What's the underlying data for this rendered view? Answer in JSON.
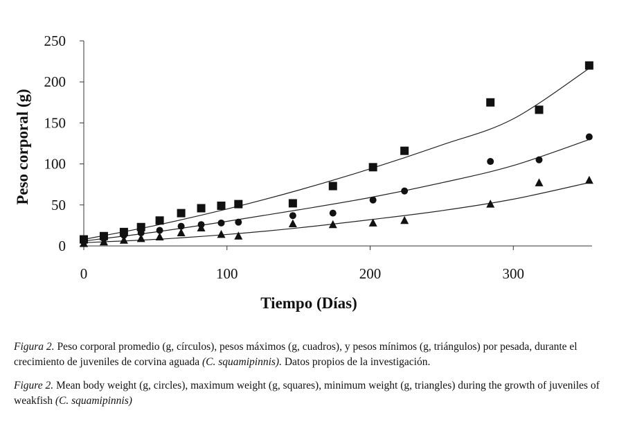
{
  "chart_data": {
    "type": "scatter",
    "xlabel": "Tiempo (Días)",
    "ylabel": "Peso corporal (g)",
    "xlim": [
      0,
      355
    ],
    "ylim": [
      0,
      250
    ],
    "x_ticks": [
      0,
      100,
      200,
      300
    ],
    "y_ticks": [
      0,
      50,
      100,
      150,
      200,
      250
    ],
    "series": [
      {
        "name": "maximum weight (squares)",
        "marker": "square",
        "x": [
          0,
          14,
          28,
          40,
          53,
          68,
          82,
          96,
          108,
          146,
          174,
          202,
          224,
          284,
          318,
          353
        ],
        "y": [
          8,
          12,
          17,
          23,
          31,
          40,
          46,
          49,
          51,
          52,
          73,
          96,
          116,
          175,
          166,
          220
        ],
        "trend_x": [
          0,
          50,
          100,
          150,
          200,
          250,
          300,
          355
        ],
        "trend_y": [
          8,
          25,
          45,
          68,
          94,
          123,
          155,
          219
        ]
      },
      {
        "name": "mean weight (circles)",
        "marker": "circle",
        "x": [
          0,
          14,
          28,
          40,
          53,
          68,
          82,
          96,
          108,
          146,
          174,
          202,
          224,
          284,
          318,
          353
        ],
        "y": [
          5,
          9,
          13,
          16,
          19,
          24,
          26,
          28,
          29,
          37,
          40,
          56,
          67,
          103,
          105,
          133
        ],
        "trend_x": [
          0,
          50,
          100,
          150,
          200,
          250,
          300,
          355
        ],
        "trend_y": [
          6,
          17,
          30,
          44,
          59,
          77,
          98,
          131
        ]
      },
      {
        "name": "minimum weight (triangles)",
        "marker": "triangle",
        "x": [
          0,
          14,
          28,
          40,
          53,
          68,
          82,
          96,
          108,
          146,
          174,
          202,
          224,
          284,
          318,
          353
        ],
        "y": [
          3,
          5,
          7,
          9,
          11,
          16,
          22,
          14,
          12,
          27,
          26,
          28,
          31,
          51,
          77,
          80
        ],
        "trend_x": [
          0,
          50,
          100,
          150,
          200,
          250,
          300,
          355
        ],
        "trend_y": [
          4,
          8,
          14,
          22,
          32,
          43,
          57,
          78
        ]
      }
    ]
  },
  "caption_es": {
    "label": "Figura 2.",
    "text": " Peso corporal promedio (g, círculos), pesos máximos (g, cuadros), y pesos mínimos (g, triángulos) por pesada, durante el crecimiento de juveniles de corvina aguada ",
    "species": "(C. squamipinnis).",
    "tail": " Datos propios de la investigación."
  },
  "caption_en": {
    "label": "Figure 2.",
    "text": " Mean body weight (g, circles), maximum weight (g, squares), minimum weight (g, triangles)  during the growth of juveniles of weakfish ",
    "species": "(C. squamipinnis)"
  }
}
